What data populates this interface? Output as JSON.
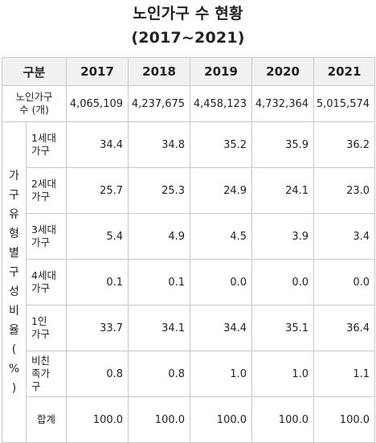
{
  "title": {
    "line1": "노인가구 수 현황",
    "line2": "(2017~2021)"
  },
  "table": {
    "header": [
      "구분",
      "2017",
      "2018",
      "2019",
      "2020",
      "2021"
    ],
    "households_label_line1": "노인가구",
    "households_label_line2": "수 (개)",
    "households": [
      "4,065,109",
      "4,237,675",
      "4,458,123",
      "4,732,364",
      "5,015,574"
    ],
    "side_label_chars": [
      "가",
      "구",
      "유",
      "형",
      "별",
      "구",
      "성",
      "비",
      "율",
      "(",
      "%",
      ")"
    ],
    "rows": [
      {
        "label1": "1세대",
        "label2": "가구",
        "values": [
          "34.4",
          "34.8",
          "35.2",
          "35.9",
          "36.2"
        ]
      },
      {
        "label1": "2세대",
        "label2": "가구",
        "values": [
          "25.7",
          "25.3",
          "24.9",
          "24.1",
          "23.0"
        ]
      },
      {
        "label1": "3세대",
        "label2": "가구",
        "values": [
          "5.4",
          "4.9",
          "4.5",
          "3.9",
          "3.4"
        ]
      },
      {
        "label1": "4세대",
        "label2": "가구",
        "values": [
          "0.1",
          "0.1",
          "0.0",
          "0.0",
          "0.0"
        ]
      },
      {
        "label1": "1인",
        "label2": "가구",
        "values": [
          "33.7",
          "34.1",
          "34.4",
          "35.1",
          "36.4"
        ]
      },
      {
        "label1": "비친",
        "label2": "족가",
        "label3": "구",
        "values": [
          "0.8",
          "0.8",
          "1.0",
          "1.0",
          "1.1"
        ]
      },
      {
        "label1": "합계",
        "values": [
          "100.0",
          "100.0",
          "100.0",
          "100.0",
          "100.0"
        ]
      }
    ]
  }
}
